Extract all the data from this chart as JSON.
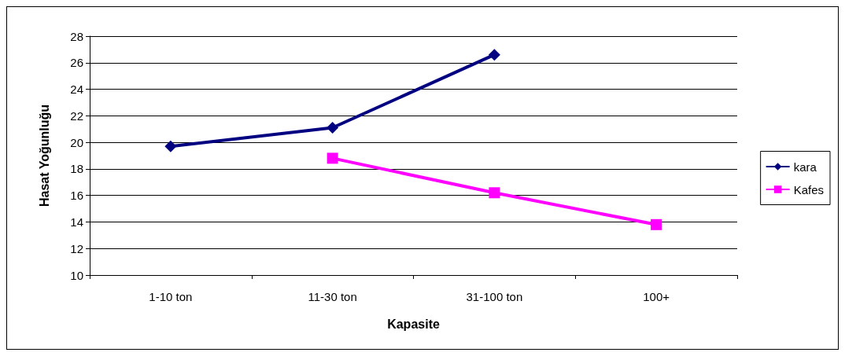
{
  "chart_data": {
    "type": "line",
    "xlabel": "Kapasite",
    "ylabel": "Hasat Yoğunluğu",
    "categories": [
      "1-10 ton",
      "11-30 ton",
      "31-100 ton",
      "100+"
    ],
    "series": [
      {
        "name": "kara",
        "color": "#000080",
        "marker": "diamond",
        "values": [
          19.7,
          21.1,
          26.6,
          null
        ]
      },
      {
        "name": "Kafes",
        "color": "#ff00ff",
        "marker": "square",
        "values": [
          null,
          18.8,
          16.2,
          13.8
        ]
      }
    ],
    "ylim": [
      10,
      28
    ],
    "yticks": [
      10,
      12,
      14,
      16,
      18,
      20,
      22,
      24,
      26,
      28
    ],
    "grid": "y",
    "legend": "right",
    "line_style": "solid"
  }
}
